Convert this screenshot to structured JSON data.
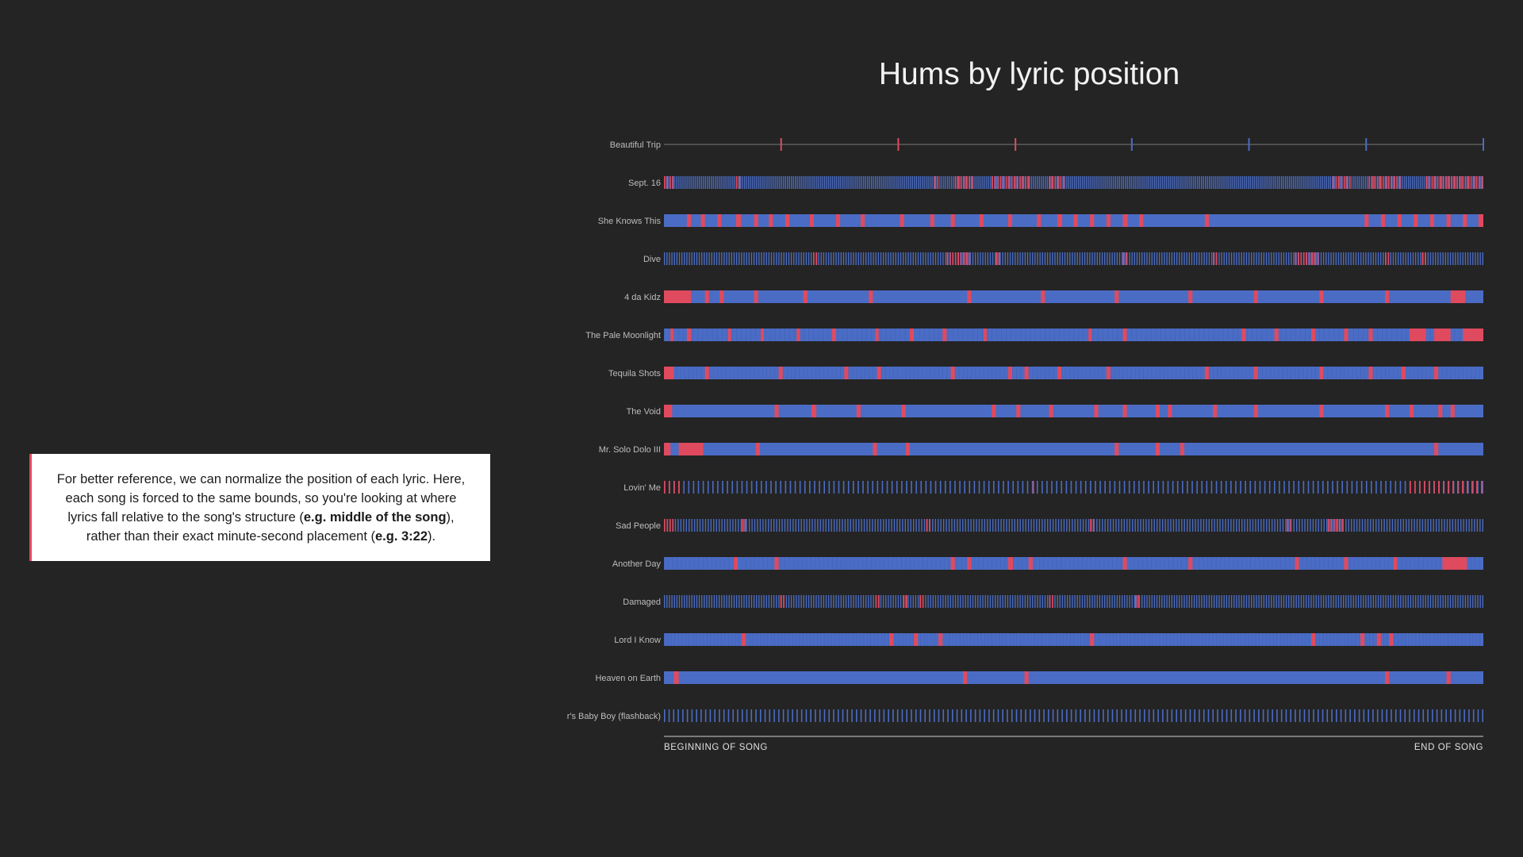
{
  "note": {
    "part1": "For better reference, we can normalize the position of each lyric. Here, each song is forced to the same bounds, so you're looking at where lyrics fall relative to the song's structure (",
    "bold1": "e.g. middle of the song",
    "part2": "), rather than their exact minute-second placement (",
    "bold2": "e.g. 3:22",
    "part3": ")."
  },
  "colors": {
    "background": "#242424",
    "hum": "#e04a5e",
    "lyric": "#4a6cc4",
    "accent_border": "#e04a5e"
  },
  "chart_data": {
    "type": "strip",
    "title": "Hums by lyric position",
    "x_start_label": "BEGINNING OF SONG",
    "x_end_label": "END OF SONG",
    "xlim": [
      0,
      1
    ],
    "legend_note": "",
    "songs": [
      {
        "name": "Beautiful Trip",
        "style": "ticks",
        "ticks": [
          {
            "pos": 0.143,
            "type": "hum"
          },
          {
            "pos": 0.286,
            "type": "hum"
          },
          {
            "pos": 0.429,
            "type": "hum"
          },
          {
            "pos": 0.571,
            "type": "lyric"
          },
          {
            "pos": 0.714,
            "type": "lyric"
          },
          {
            "pos": 0.857,
            "type": "lyric"
          },
          {
            "pos": 1.0,
            "type": "lyric"
          }
        ]
      },
      {
        "name": "Sept. 16",
        "style": "dense",
        "lines": 420,
        "hums": [
          [
            0.0,
            0.012
          ],
          [
            0.088,
            0.092
          ],
          [
            0.33,
            0.335
          ],
          [
            0.355,
            0.377
          ],
          [
            0.4,
            0.445
          ],
          [
            0.47,
            0.488
          ],
          [
            0.816,
            0.838
          ],
          [
            0.86,
            0.9
          ],
          [
            0.93,
            1.0
          ]
        ]
      },
      {
        "name": "She Knows This",
        "style": "solid",
        "hums": [
          [
            0.028,
            0.033
          ],
          [
            0.045,
            0.05
          ],
          [
            0.065,
            0.07
          ],
          [
            0.088,
            0.094
          ],
          [
            0.11,
            0.115
          ],
          [
            0.128,
            0.133
          ],
          [
            0.148,
            0.153
          ],
          [
            0.178,
            0.183
          ],
          [
            0.21,
            0.215
          ],
          [
            0.24,
            0.245
          ],
          [
            0.288,
            0.293
          ],
          [
            0.325,
            0.33
          ],
          [
            0.35,
            0.355
          ],
          [
            0.385,
            0.39
          ],
          [
            0.42,
            0.425
          ],
          [
            0.455,
            0.46
          ],
          [
            0.48,
            0.486
          ],
          [
            0.5,
            0.505
          ],
          [
            0.52,
            0.525
          ],
          [
            0.54,
            0.545
          ],
          [
            0.56,
            0.566
          ],
          [
            0.58,
            0.585
          ],
          [
            0.66,
            0.665
          ],
          [
            0.855,
            0.86
          ],
          [
            0.875,
            0.88
          ],
          [
            0.895,
            0.9
          ],
          [
            0.915,
            0.92
          ],
          [
            0.935,
            0.94
          ],
          [
            0.955,
            0.96
          ],
          [
            0.975,
            0.98
          ],
          [
            0.994,
            1.0
          ]
        ]
      },
      {
        "name": "Dive",
        "style": "dense",
        "lines": 330,
        "hums": [
          [
            0.182,
            0.187
          ],
          [
            0.345,
            0.375
          ],
          [
            0.405,
            0.41
          ],
          [
            0.56,
            0.565
          ],
          [
            0.67,
            0.675
          ],
          [
            0.77,
            0.8
          ],
          [
            0.88,
            0.885
          ],
          [
            0.925,
            0.93
          ]
        ]
      },
      {
        "name": "4 da Kidz",
        "style": "solid",
        "hums": [
          [
            0.0,
            0.033
          ],
          [
            0.05,
            0.055
          ],
          [
            0.068,
            0.073
          ],
          [
            0.11,
            0.115
          ],
          [
            0.17,
            0.175
          ],
          [
            0.25,
            0.255
          ],
          [
            0.37,
            0.375
          ],
          [
            0.46,
            0.465
          ],
          [
            0.55,
            0.555
          ],
          [
            0.64,
            0.645
          ],
          [
            0.72,
            0.725
          ],
          [
            0.8,
            0.805
          ],
          [
            0.88,
            0.885
          ],
          [
            0.96,
            0.978
          ]
        ]
      },
      {
        "name": "The Pale Moonlight",
        "style": "fine",
        "lines": 170,
        "hums": [
          [
            0.008,
            0.012
          ],
          [
            0.028,
            0.033
          ],
          [
            0.078,
            0.082
          ],
          [
            0.118,
            0.122
          ],
          [
            0.162,
            0.166
          ],
          [
            0.205,
            0.21
          ],
          [
            0.258,
            0.262
          ],
          [
            0.3,
            0.305
          ],
          [
            0.34,
            0.345
          ],
          [
            0.39,
            0.394
          ],
          [
            0.518,
            0.522
          ],
          [
            0.56,
            0.565
          ],
          [
            0.705,
            0.71
          ],
          [
            0.745,
            0.75
          ],
          [
            0.79,
            0.795
          ],
          [
            0.83,
            0.835
          ],
          [
            0.86,
            0.865
          ],
          [
            0.91,
            0.93
          ],
          [
            0.94,
            0.96
          ],
          [
            0.975,
            1.0
          ]
        ]
      },
      {
        "name": "Tequila Shots",
        "style": "fine",
        "lines": 200,
        "hums": [
          [
            0.0,
            0.012
          ],
          [
            0.05,
            0.055
          ],
          [
            0.14,
            0.145
          ],
          [
            0.22,
            0.225
          ],
          [
            0.26,
            0.265
          ],
          [
            0.35,
            0.355
          ],
          [
            0.42,
            0.425
          ],
          [
            0.44,
            0.445
          ],
          [
            0.48,
            0.485
          ],
          [
            0.54,
            0.545
          ],
          [
            0.66,
            0.665
          ],
          [
            0.72,
            0.725
          ],
          [
            0.8,
            0.805
          ],
          [
            0.86,
            0.865
          ],
          [
            0.9,
            0.905
          ],
          [
            0.94,
            0.945
          ]
        ]
      },
      {
        "name": "The Void",
        "style": "solid",
        "hums": [
          [
            0.0,
            0.01
          ],
          [
            0.135,
            0.14
          ],
          [
            0.18,
            0.186
          ],
          [
            0.235,
            0.24
          ],
          [
            0.29,
            0.295
          ],
          [
            0.4,
            0.405
          ],
          [
            0.43,
            0.435
          ],
          [
            0.47,
            0.475
          ],
          [
            0.525,
            0.53
          ],
          [
            0.56,
            0.565
          ],
          [
            0.6,
            0.605
          ],
          [
            0.615,
            0.62
          ],
          [
            0.67,
            0.675
          ],
          [
            0.72,
            0.725
          ],
          [
            0.8,
            0.805
          ],
          [
            0.88,
            0.885
          ],
          [
            0.91,
            0.915
          ],
          [
            0.945,
            0.95
          ],
          [
            0.96,
            0.965
          ]
        ]
      },
      {
        "name": "Mr. Solo Dolo III",
        "style": "solid",
        "hums": [
          [
            0.0,
            0.008
          ],
          [
            0.018,
            0.048
          ],
          [
            0.112,
            0.117
          ],
          [
            0.255,
            0.26
          ],
          [
            0.295,
            0.3
          ],
          [
            0.55,
            0.555
          ],
          [
            0.6,
            0.605
          ],
          [
            0.63,
            0.635
          ],
          [
            0.94,
            0.945
          ]
        ]
      },
      {
        "name": "Lovin' Me",
        "style": "sparse",
        "lines": 170,
        "hums": [
          [
            0.0,
            0.018
          ],
          [
            0.45,
            0.455
          ],
          [
            0.91,
            1.0
          ]
        ]
      },
      {
        "name": "Sad People",
        "style": "dense",
        "lines": 300,
        "hums": [
          [
            0.0,
            0.012
          ],
          [
            0.095,
            0.1
          ],
          [
            0.32,
            0.325
          ],
          [
            0.52,
            0.525
          ],
          [
            0.76,
            0.765
          ],
          [
            0.81,
            0.83
          ]
        ]
      },
      {
        "name": "Another Day",
        "style": "fine",
        "lines": 190,
        "hums": [
          [
            0.085,
            0.09
          ],
          [
            0.135,
            0.14
          ],
          [
            0.35,
            0.355
          ],
          [
            0.37,
            0.375
          ],
          [
            0.42,
            0.426
          ],
          [
            0.445,
            0.45
          ],
          [
            0.56,
            0.565
          ],
          [
            0.64,
            0.645
          ],
          [
            0.77,
            0.775
          ],
          [
            0.83,
            0.835
          ],
          [
            0.89,
            0.895
          ],
          [
            0.95,
            0.98
          ]
        ]
      },
      {
        "name": "Damaged",
        "style": "dense",
        "lines": 330,
        "hums": [
          [
            0.142,
            0.147
          ],
          [
            0.258,
            0.262
          ],
          [
            0.292,
            0.296
          ],
          [
            0.312,
            0.318
          ],
          [
            0.47,
            0.475
          ],
          [
            0.575,
            0.58
          ]
        ]
      },
      {
        "name": "Lord I Know",
        "style": "fine",
        "lines": 230,
        "hums": [
          [
            0.095,
            0.1
          ],
          [
            0.275,
            0.28
          ],
          [
            0.305,
            0.31
          ],
          [
            0.335,
            0.34
          ],
          [
            0.52,
            0.525
          ],
          [
            0.79,
            0.795
          ],
          [
            0.85,
            0.855
          ],
          [
            0.87,
            0.875
          ],
          [
            0.885,
            0.89
          ]
        ]
      },
      {
        "name": "Heaven on Earth",
        "style": "solid",
        "hums": [
          [
            0.012,
            0.018
          ],
          [
            0.365,
            0.37
          ],
          [
            0.44,
            0.445
          ],
          [
            0.88,
            0.885
          ],
          [
            0.955,
            0.96
          ]
        ]
      },
      {
        "name": "Mr. Rager's Baby Boy (flashback)",
        "style": "sparse",
        "lines": 180,
        "hums": []
      }
    ]
  }
}
